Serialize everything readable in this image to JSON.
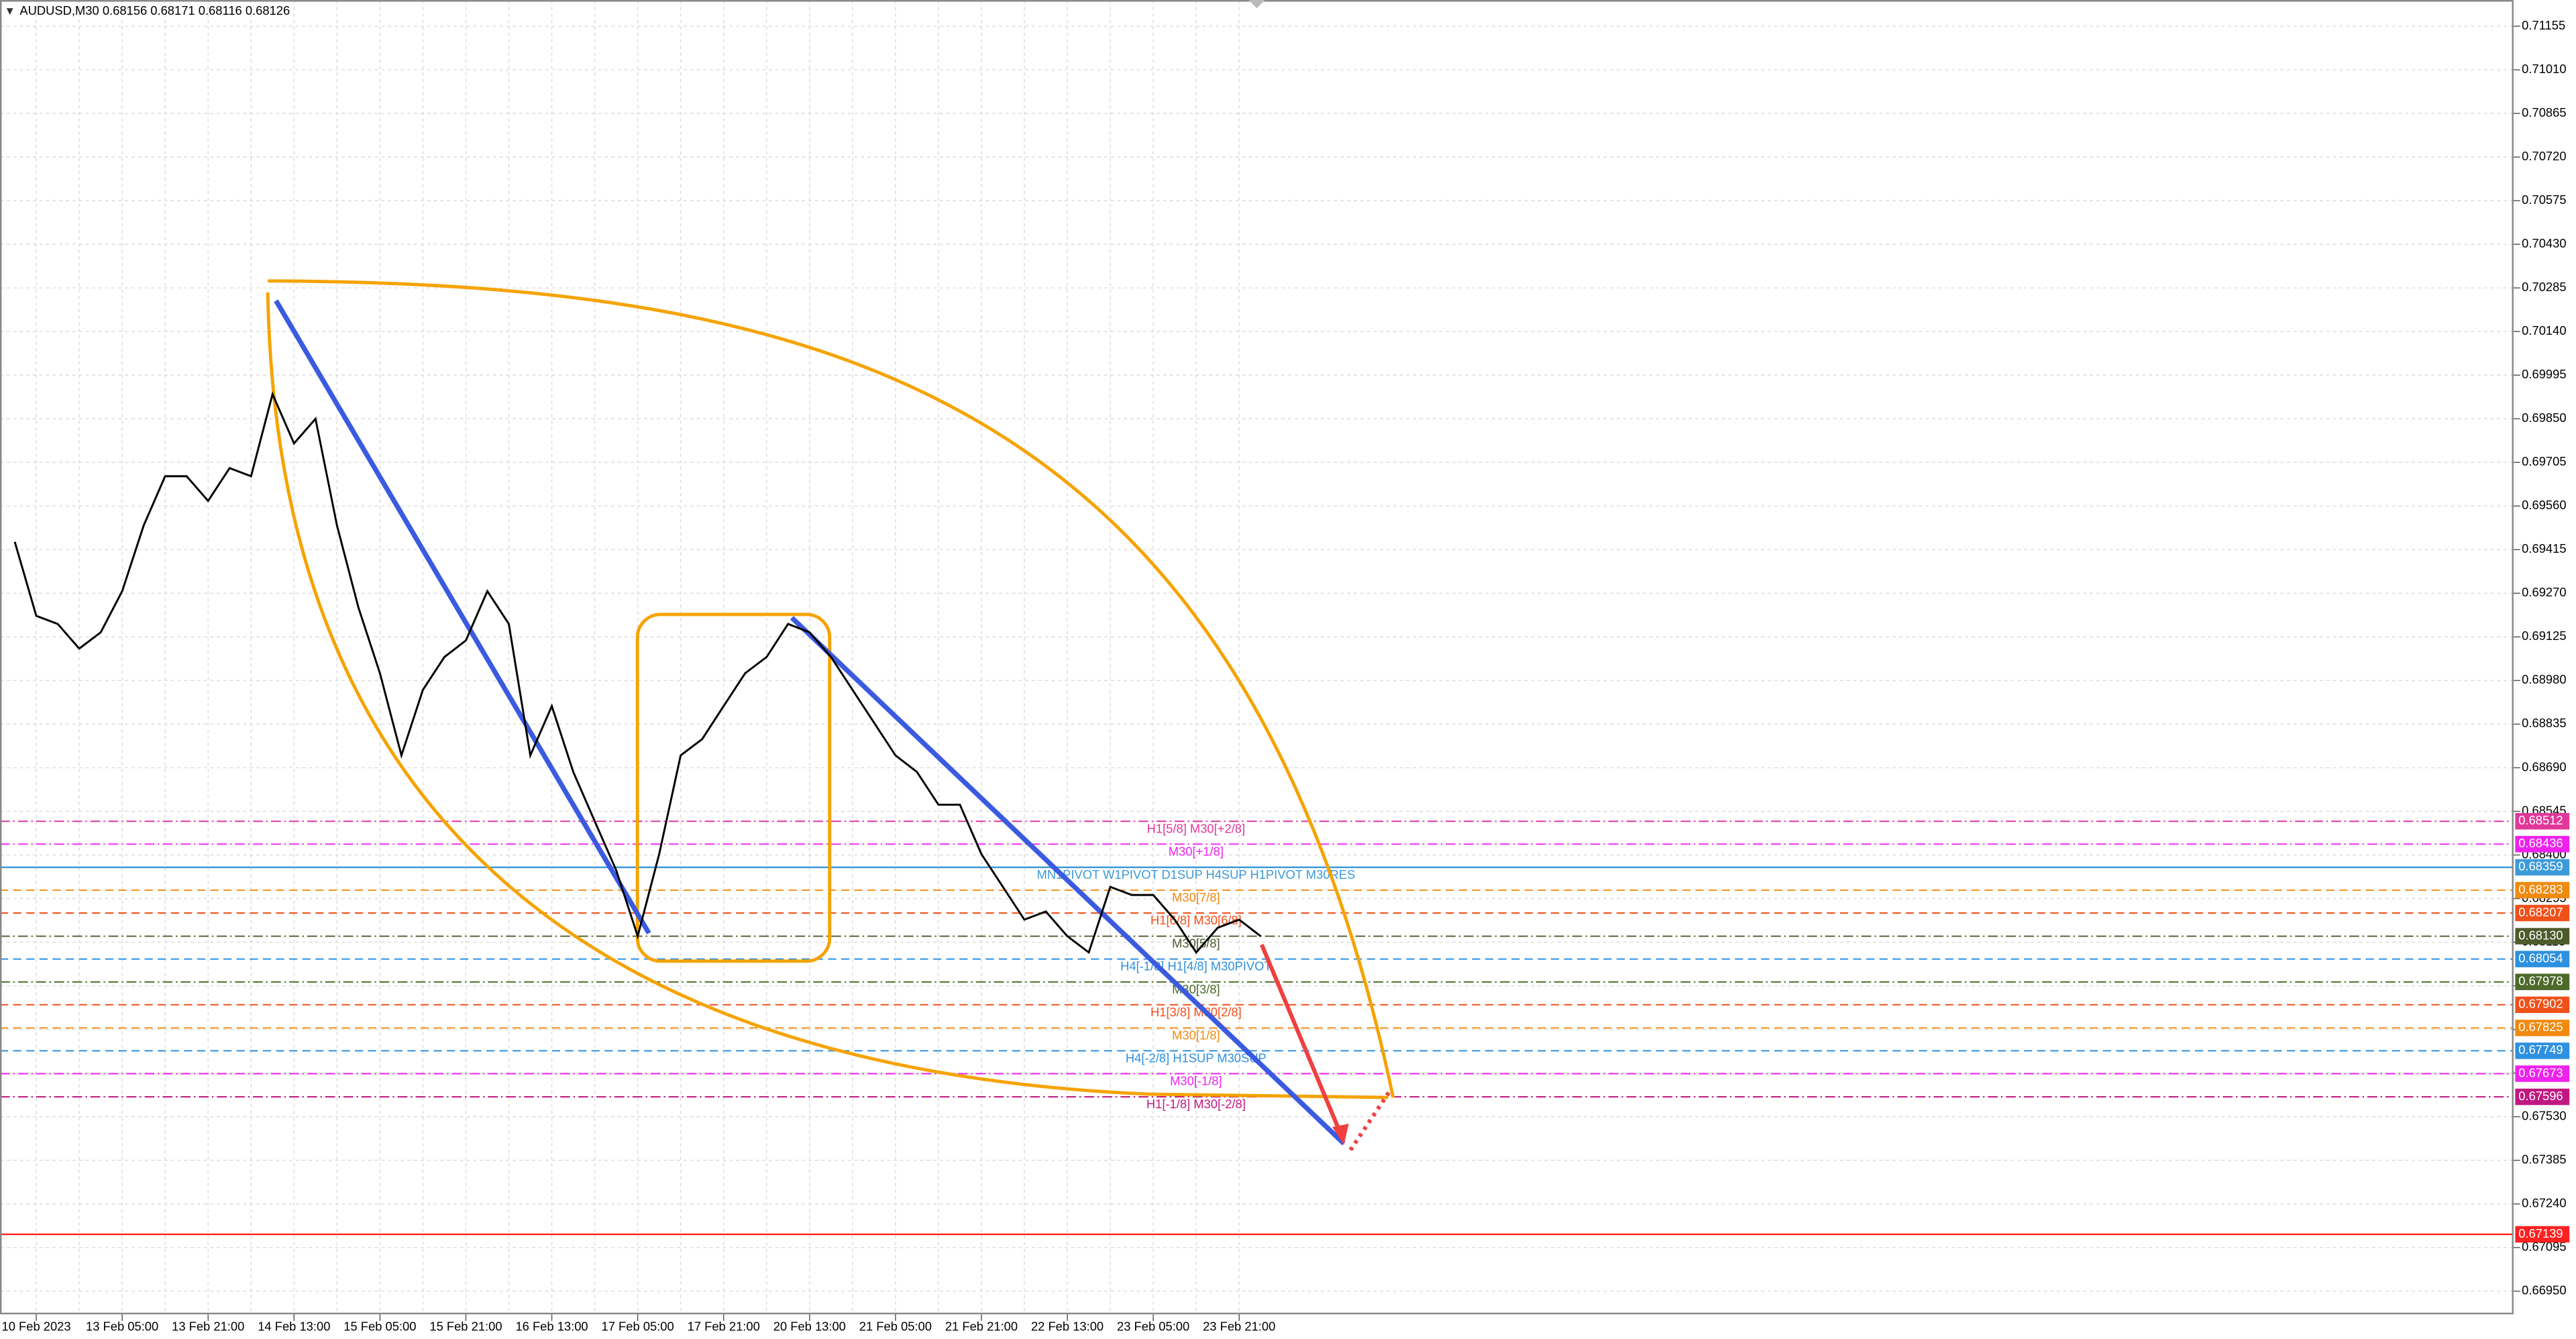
{
  "chart_data": {
    "type": "line",
    "title": "AUDUSD,M30  0.68156 0.68171 0.68116 0.68126",
    "categories": [
      null,
      "10 Feb 2023",
      null,
      null,
      null,
      "13 Feb 05:00",
      null,
      null,
      null,
      "13 Feb 21:00",
      null,
      null,
      null,
      "14 Feb 13:00",
      null,
      null,
      null,
      "15 Feb 05:00",
      null,
      null,
      null,
      "15 Feb 21:00",
      null,
      null,
      null,
      "16 Feb 13:00",
      null,
      null,
      null,
      "17 Feb 05:00",
      null,
      null,
      null,
      "17 Feb 21:00",
      null,
      null,
      null,
      "20 Feb 13:00",
      null,
      null,
      null,
      "21 Feb 05:00",
      null,
      null,
      null,
      "21 Feb 21:00",
      null,
      null,
      null,
      "22 Feb 13:00",
      null,
      null,
      null,
      "23 Feb 05:00",
      null,
      null,
      null,
      "23 Feb 21:00",
      null
    ],
    "series": [
      {
        "color": "#000000",
        "values": [
          0.69441,
          0.69195,
          0.69168,
          0.69086,
          0.6914,
          0.69277,
          0.69495,
          0.69659,
          0.69659,
          0.69577,
          0.69686,
          0.69659,
          0.69932,
          0.69768,
          0.6985,
          0.69495,
          0.69222,
          0.69004,
          0.68731,
          0.68949,
          0.69058,
          0.69113,
          0.69277,
          0.69168,
          0.68731,
          0.68895,
          0.68676,
          0.68512,
          0.68349,
          0.6813,
          0.68403,
          0.68731,
          0.68785,
          0.68895,
          0.69004,
          0.69058,
          0.69168,
          0.6914,
          0.69058,
          0.68949,
          0.6884,
          0.68731,
          0.68676,
          0.68567,
          0.68567,
          0.68403,
          0.68294,
          0.68185,
          0.68212,
          0.6813,
          0.68076,
          0.68294,
          0.68267,
          0.68267,
          0.68185,
          0.68076,
          0.68158,
          0.68185,
          0.6813
        ]
      }
    ],
    "ylim": [
      0.66873,
      0.71242
    ],
    "yticks": [
      0.71155,
      {
        "value": 0.7101,
        "label": "0.71010"
      },
      0.70865,
      {
        "value": 0.7072,
        "label": "0.70720"
      },
      0.70575,
      {
        "value": 0.7043,
        "label": "0.70430"
      },
      0.70285,
      {
        "value": 0.7014,
        "label": "0.70140"
      },
      0.69995,
      {
        "value": 0.6985,
        "label": "0.69850"
      },
      0.69705,
      {
        "value": 0.6956,
        "label": "0.69560"
      },
      0.69415,
      {
        "value": 0.6927,
        "label": "0.69270"
      },
      0.69125,
      {
        "value": 0.6898,
        "label": "0.68980"
      },
      0.68835,
      {
        "value": 0.6869,
        "label": "0.68690"
      },
      0.68545,
      {
        "value": 0.684,
        "label": "0.68400"
      },
      0.68255,
      {
        "value": 0.6811,
        "label": "0.68110"
      },
      0.67965,
      {
        "value": 0.6782,
        "label": "0.67820"
      },
      0.67675,
      {
        "value": 0.6753,
        "label": "0.67530"
      },
      0.67385,
      {
        "value": 0.6724,
        "label": "0.67240"
      },
      0.67095,
      {
        "value": 0.6695,
        "label": "0.66950"
      }
    ],
    "grid": true,
    "levels": [
      {
        "value": 0.68512,
        "label": "H1[5/8] M30[+2/8]",
        "color": "#e0389a",
        "style": "dashdot"
      },
      {
        "value": 0.68436,
        "label": "M30[+1/8]",
        "color": "#ee22ee",
        "style": "dashdot"
      },
      {
        "value": 0.68359,
        "label": "MN1PIVOT W1PIVOT D1SUP H4SUP H1PIVOT M30RES",
        "color": "#3d9ad8",
        "style": "solid"
      },
      {
        "value": 0.68283,
        "label": "M30[7/8]",
        "color": "#f08a10",
        "style": "dash"
      },
      {
        "value": 0.68207,
        "label": "H1[6/8] M30[6/8]",
        "color": "#f0501a",
        "style": "dash"
      },
      {
        "value": 0.6813,
        "value_label": "0.68130",
        "label": "M30[5/8]",
        "color": "#4d5a2a",
        "style": "dashdot"
      },
      {
        "value": 0.68054,
        "label": "H4[-1/8] H1[4/8] M30PIVOT",
        "color": "#2e90e0",
        "style": "dash"
      },
      {
        "value": 0.67978,
        "label": "M30[3/8]",
        "color": "#4d6a2a",
        "style": "dashdot"
      },
      {
        "value": 0.67902,
        "label": "H1[3/8] M30[2/8]",
        "color": "#f0501a",
        "style": "dash"
      },
      {
        "value": 0.67825,
        "label": "M30[1/8]",
        "color": "#f08a10",
        "style": "dash"
      },
      {
        "value": 0.67749,
        "label": "H4[-2/8] H1SUP M30SUP",
        "color": "#2e90e0",
        "style": "dash"
      },
      {
        "value": 0.67673,
        "label": "M30[-1/8]",
        "color": "#ee22ee",
        "style": "dashdot"
      },
      {
        "value": 0.67596,
        "label": "H1[-1/8] M30[-2/8]",
        "color": "#c01880",
        "style": "dashdot"
      },
      {
        "value": 0.67139,
        "color": "#ff2020",
        "style": "solid"
      }
    ]
  }
}
